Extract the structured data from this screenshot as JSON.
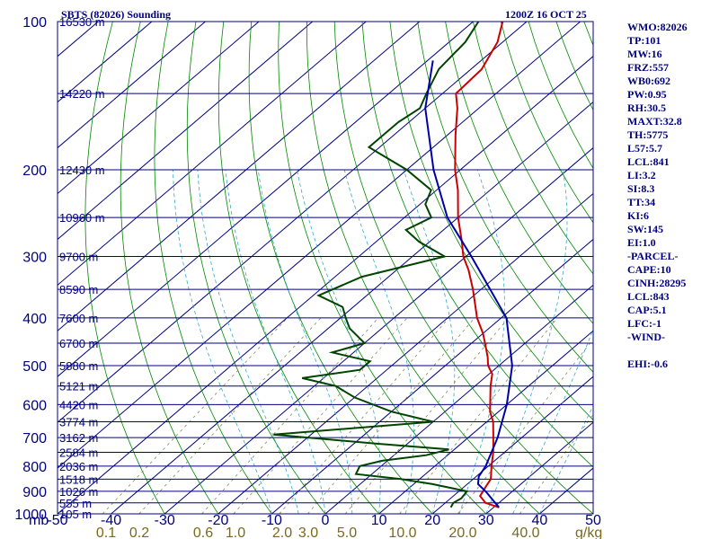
{
  "header": {
    "station": "SBTS (82026) Sounding",
    "datetime": "1200Z 16 OCT 25"
  },
  "indices": [
    "WMO:82026",
    "TP:101",
    "MW:16",
    "FRZ:557",
    "WB0:692",
    "PW:0.95",
    "RH:30.5",
    "MAXT:32.8",
    "TH:5775",
    "L57:5.7",
    "LCL:841",
    "LI:3.2",
    "SI:8.3",
    "TT:34",
    "KI:6",
    "SW:145",
    "EI:1.0",
    "-PARCEL-",
    "CAPE:10",
    "CINH:28295",
    "LCL:843",
    "CAP:5.1",
    "LFC:-1",
    "-WIND-",
    "",
    "EHI:-0.6"
  ],
  "colors": {
    "frame": "#000080",
    "isobar": "#000080",
    "isotherm": "#000080",
    "dry_adiabat": "#008800",
    "moist_adiabat": "#33aacc",
    "mixing_ratio": "#888855",
    "temperature": "#cc0000",
    "dewpoint": "#004400",
    "parcel": "#0000aa",
    "wind_axis": "#7a6a1a"
  },
  "chart_data": {
    "type": "skew-t log-p sounding",
    "title": "SBTS (82026) Sounding",
    "pressure_unit_label": "mb",
    "pressure_range_mb": [
      1000,
      100
    ],
    "temperature_range_c": [
      -50,
      50
    ],
    "pressure_ticks": [
      100,
      200,
      300,
      400,
      500,
      600,
      700,
      800,
      900,
      1000
    ],
    "temperature_ticks": [
      -50,
      -40,
      -30,
      -20,
      -10,
      0,
      10,
      20,
      30,
      40,
      50
    ],
    "mixing_ratio_ticks": [
      "0.1",
      "0.2",
      "0.6",
      "1.0",
      "2.0",
      "3.0",
      "5.0",
      "10.0",
      "20.0",
      "40.0"
    ],
    "mixing_ratio_unit": "g/kg",
    "height_labels": [
      {
        "p": 100,
        "h": "16530 m"
      },
      {
        "p": 140,
        "h": "14220 m"
      },
      {
        "p": 200,
        "h": "12430 m"
      },
      {
        "p": 250,
        "h": "10960 m"
      },
      {
        "p": 300,
        "h": "9700 m"
      },
      {
        "p": 350,
        "h": "8590 m"
      },
      {
        "p": 400,
        "h": "7600 m"
      },
      {
        "p": 450,
        "h": "6700 m"
      },
      {
        "p": 500,
        "h": "5880 m"
      },
      {
        "p": 550,
        "h": "5121 m"
      },
      {
        "p": 600,
        "h": "4420 m"
      },
      {
        "p": 650,
        "h": "3774 m"
      },
      {
        "p": 700,
        "h": "3162 m"
      },
      {
        "p": 750,
        "h": "2584 m"
      },
      {
        "p": 800,
        "h": "2036 m"
      },
      {
        "p": 850,
        "h": "1518 m"
      },
      {
        "p": 900,
        "h": "1026 m"
      },
      {
        "p": 950,
        "h": "555 m"
      },
      {
        "p": 1000,
        "h": "105 m"
      }
    ],
    "series": [
      {
        "name": "Temperature",
        "points": [
          {
            "p": 970,
            "t": 31.0
          },
          {
            "p": 950,
            "t": 27.5
          },
          {
            "p": 920,
            "t": 25.0
          },
          {
            "p": 900,
            "t": 24.5
          },
          {
            "p": 880,
            "t": 24.0
          },
          {
            "p": 850,
            "t": 23.3
          },
          {
            "p": 800,
            "t": 20.6
          },
          {
            "p": 750,
            "t": 17.9
          },
          {
            "p": 700,
            "t": 14.7
          },
          {
            "p": 650,
            "t": 11.2
          },
          {
            "p": 620,
            "t": 8.4
          },
          {
            "p": 600,
            "t": 6.9
          },
          {
            "p": 550,
            "t": 2.9
          },
          {
            "p": 520,
            "t": 0.6
          },
          {
            "p": 500,
            "t": -2.0
          },
          {
            "p": 480,
            "t": -4.0
          },
          {
            "p": 450,
            "t": -7.5
          },
          {
            "p": 430,
            "t": -10.0
          },
          {
            "p": 400,
            "t": -14.5
          },
          {
            "p": 350,
            "t": -21.5
          },
          {
            "p": 320,
            "t": -26.5
          },
          {
            "p": 300,
            "t": -30.5
          },
          {
            "p": 280,
            "t": -34.0
          },
          {
            "p": 250,
            "t": -40.0
          },
          {
            "p": 220,
            "t": -46.0
          },
          {
            "p": 200,
            "t": -51.0
          },
          {
            "p": 170,
            "t": -58.5
          },
          {
            "p": 150,
            "t": -64.0
          },
          {
            "p": 140,
            "t": -67.5
          },
          {
            "p": 125,
            "t": -68.0
          },
          {
            "p": 110,
            "t": -71.0
          },
          {
            "p": 100,
            "t": -74.5
          }
        ]
      },
      {
        "name": "Dewpoint",
        "points": [
          {
            "p": 970,
            "t": 22.0
          },
          {
            "p": 950,
            "t": 21.5
          },
          {
            "p": 930,
            "t": 22.0
          },
          {
            "p": 900,
            "t": 21.5
          },
          {
            "p": 870,
            "t": 13.5
          },
          {
            "p": 850,
            "t": 6.5
          },
          {
            "p": 830,
            "t": -3.0
          },
          {
            "p": 800,
            "t": -4.0
          },
          {
            "p": 780,
            "t": -1.0
          },
          {
            "p": 760,
            "t": 6.0
          },
          {
            "p": 740,
            "t": 9.0
          },
          {
            "p": 720,
            "t": -6.0
          },
          {
            "p": 690,
            "t": -27.0
          },
          {
            "p": 650,
            "t": 0.0
          },
          {
            "p": 620,
            "t": -10.0
          },
          {
            "p": 580,
            "t": -20.0
          },
          {
            "p": 550,
            "t": -26.0
          },
          {
            "p": 530,
            "t": -34.0
          },
          {
            "p": 510,
            "t": -25.0
          },
          {
            "p": 490,
            "t": -25.0
          },
          {
            "p": 470,
            "t": -34.0
          },
          {
            "p": 450,
            "t": -30.0
          },
          {
            "p": 420,
            "t": -36.0
          },
          {
            "p": 400,
            "t": -39.0
          },
          {
            "p": 380,
            "t": -42.0
          },
          {
            "p": 360,
            "t": -49.0
          },
          {
            "p": 330,
            "t": -45.0
          },
          {
            "p": 300,
            "t": -34.0
          },
          {
            "p": 280,
            "t": -42.0
          },
          {
            "p": 265,
            "t": -47.0
          },
          {
            "p": 250,
            "t": -45.0
          },
          {
            "p": 235,
            "t": -49.0
          },
          {
            "p": 220,
            "t": -51.0
          },
          {
            "p": 200,
            "t": -60.0
          },
          {
            "p": 180,
            "t": -72.0
          },
          {
            "p": 160,
            "t": -72.0
          },
          {
            "p": 150,
            "t": -71.0
          },
          {
            "p": 140,
            "t": -73.0
          },
          {
            "p": 125,
            "t": -76.0
          },
          {
            "p": 110,
            "t": -77.0
          },
          {
            "p": 100,
            "t": -79.0
          }
        ]
      },
      {
        "name": "Parcel",
        "points": [
          {
            "p": 970,
            "t": 31.0
          },
          {
            "p": 900,
            "t": 25.0
          },
          {
            "p": 870,
            "t": 22.0
          },
          {
            "p": 840,
            "t": 20.5
          },
          {
            "p": 800,
            "t": 19.5
          },
          {
            "p": 700,
            "t": 15.5
          },
          {
            "p": 600,
            "t": 10.0
          },
          {
            "p": 500,
            "t": 2.5
          },
          {
            "p": 400,
            "t": -9.0
          },
          {
            "p": 300,
            "t": -29.0
          },
          {
            "p": 250,
            "t": -42.0
          },
          {
            "p": 200,
            "t": -55.0
          },
          {
            "p": 150,
            "t": -70.0
          },
          {
            "p": 120,
            "t": -79.0
          }
        ]
      }
    ]
  }
}
